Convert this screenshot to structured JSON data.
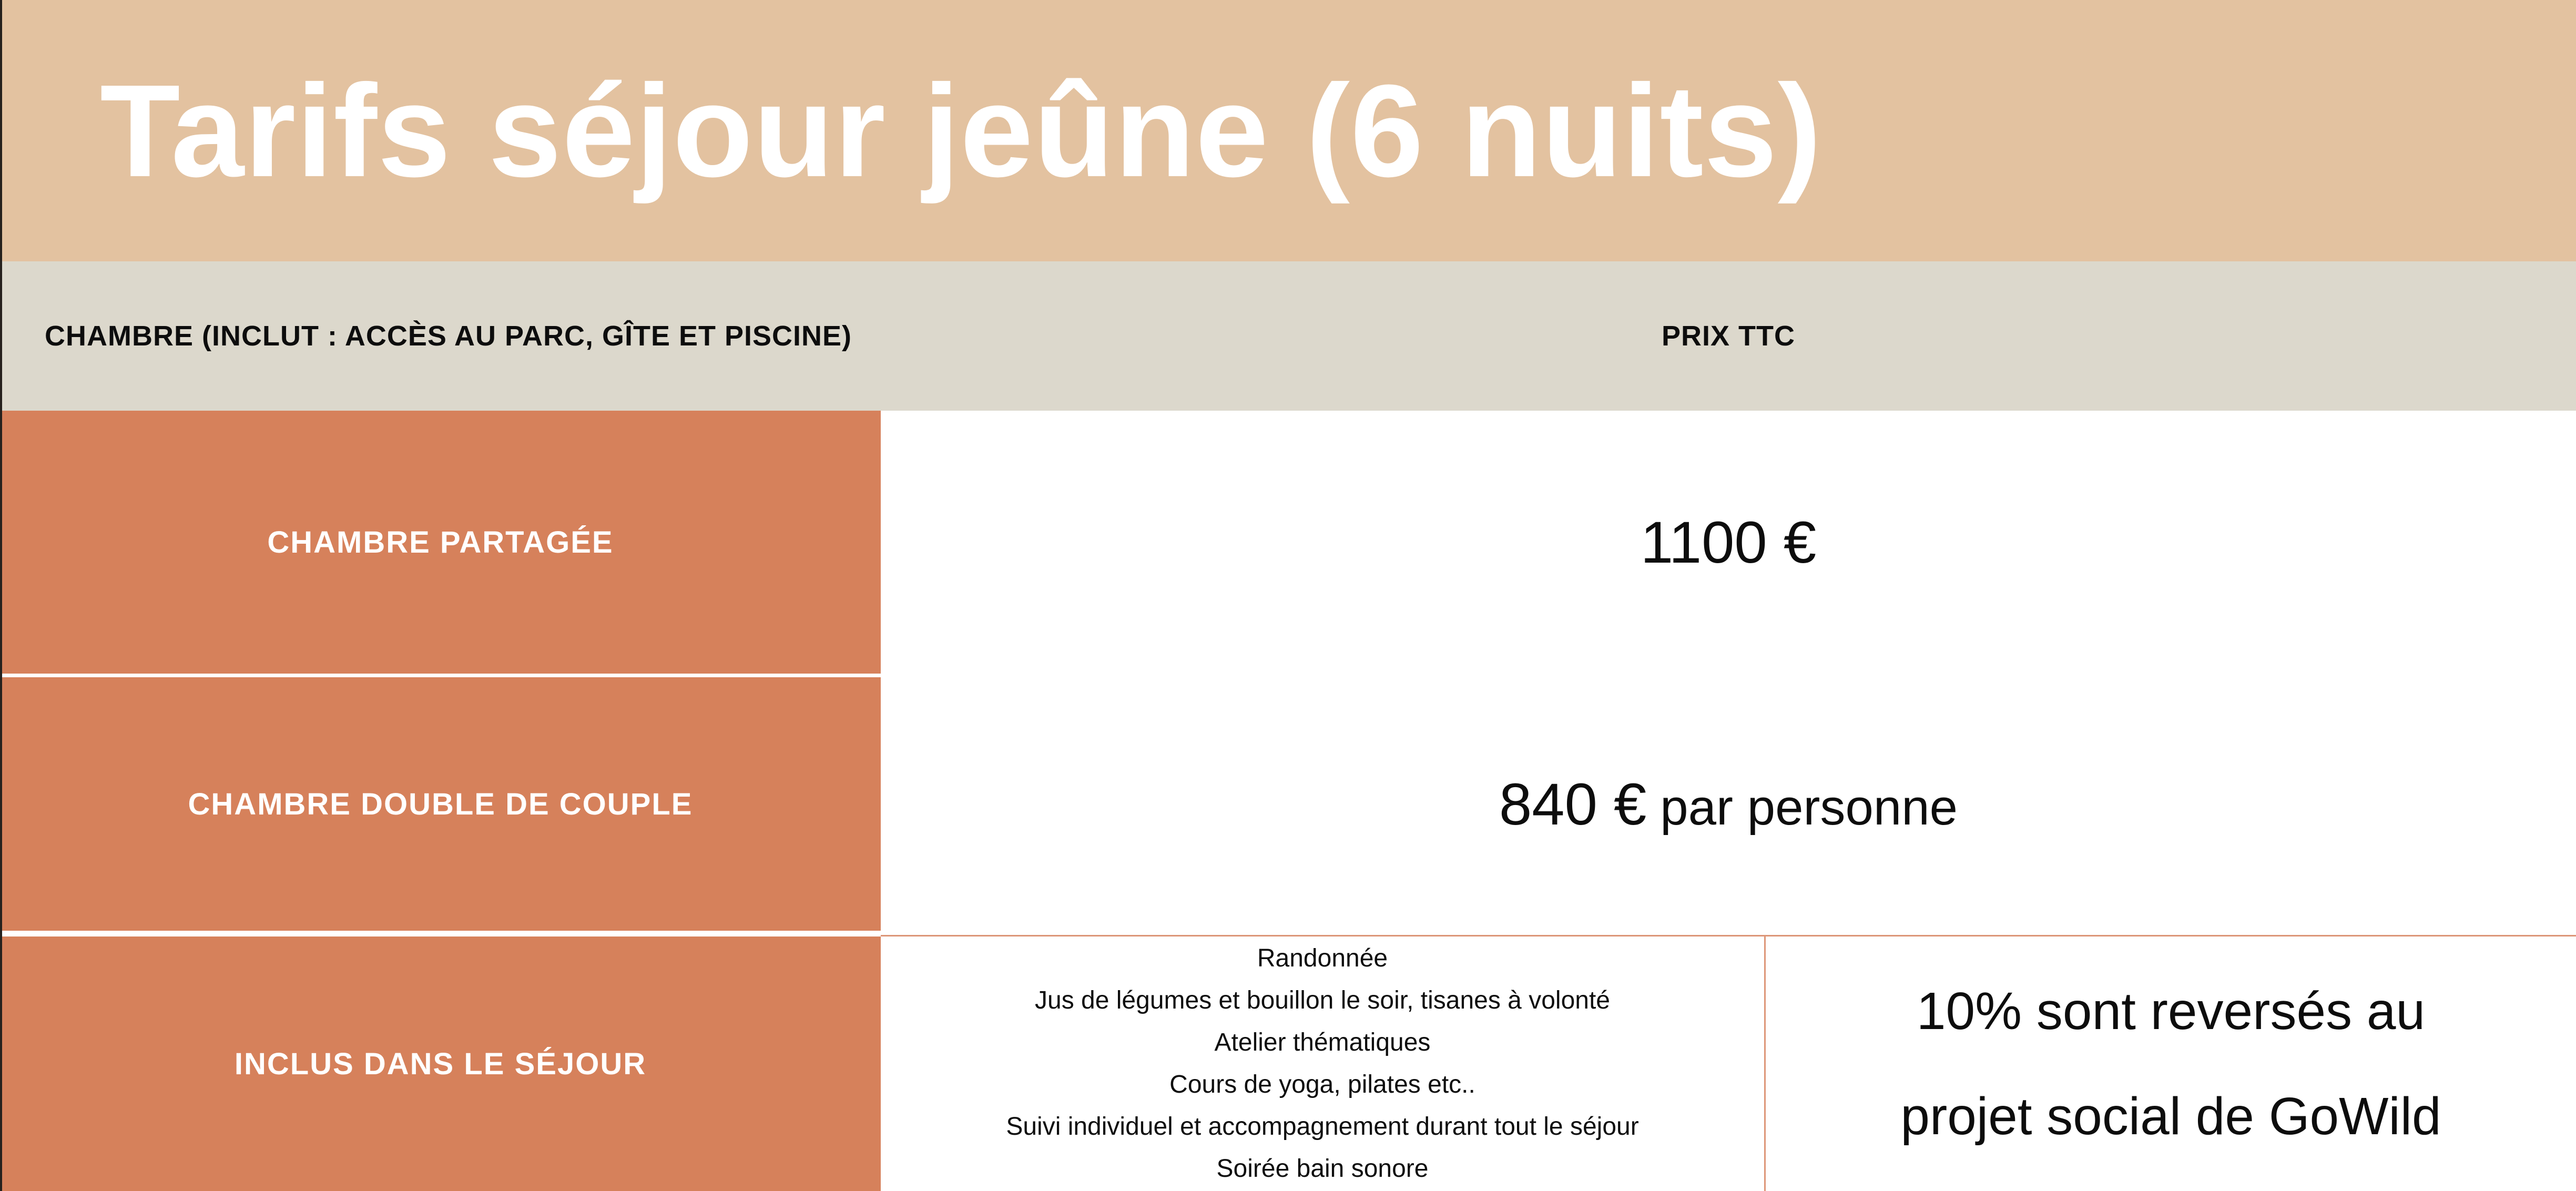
{
  "banner": {
    "title": "Tarifs séjour jeûne (6 nuits)"
  },
  "header": {
    "room_column_label": "CHAMBRE (INCLUT : ACCÈS AU PARC, GÎTE ET PISCINE)",
    "price_column_label": "PRIX TTC"
  },
  "rows": {
    "shared_room": {
      "label": "CHAMBRE PARTAGÉE",
      "price": "1100 €"
    },
    "double_room": {
      "label": "CHAMBRE DOUBLE DE COUPLE",
      "price_amount": "840 €",
      "price_unit": "par personne"
    },
    "included": {
      "label": "INCLUS DANS LE SÉJOUR",
      "items": [
        "Randonnée",
        "Jus de légumes et bouillon le soir, tisanes à volonté",
        "Atelier thématiques",
        "Cours de yoga, pilates etc..",
        "Suivi individuel et accompagnement durant tout le séjour",
        "Soirée bain sonore"
      ],
      "note_lines": [
        "10% sont reversés au",
        "projet social de GoWild"
      ]
    }
  },
  "colors": {
    "banner_bg": "#e3c2a0",
    "header_bg": "#dcd8cc",
    "accent_cell_bg": "#d6815b",
    "divider_line": "#dd9678",
    "title_text": "#ffffff",
    "body_text": "#111111",
    "left_edge": "#26211d"
  }
}
